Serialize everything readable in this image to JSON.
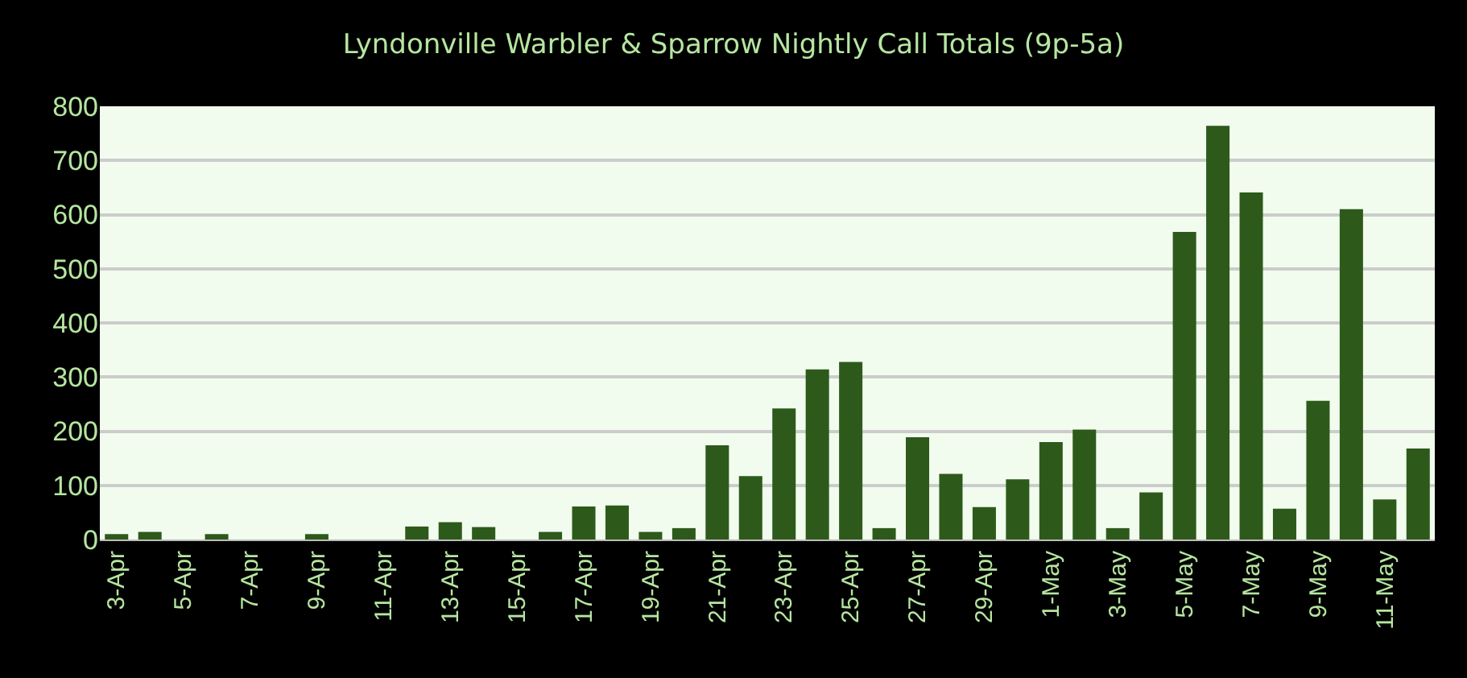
{
  "chart_data": {
    "type": "bar",
    "title": "Lyndonville Warbler & Sparrow Nightly Call Totals (9p-5a)",
    "categories": [
      "3-Apr",
      null,
      "5-Apr",
      null,
      "7-Apr",
      null,
      "9-Apr",
      null,
      "11-Apr",
      null,
      "13-Apr",
      null,
      "15-Apr",
      null,
      "17-Apr",
      null,
      "19-Apr",
      null,
      "21-Apr",
      null,
      "23-Apr",
      null,
      "25-Apr",
      null,
      "27-Apr",
      null,
      "29-Apr",
      null,
      "1-May",
      null,
      "3-May",
      null,
      "5-May",
      null,
      "7-May",
      null,
      "9-May",
      null,
      "11-May",
      null
    ],
    "values": [
      10,
      14,
      0,
      10,
      0,
      0,
      10,
      0,
      0,
      24,
      32,
      23,
      0,
      14,
      61,
      63,
      14,
      21,
      174,
      117,
      242,
      314,
      328,
      21,
      189,
      121,
      60,
      111,
      180,
      203,
      21,
      87,
      568,
      764,
      641,
      57,
      256,
      610,
      74,
      168
    ],
    "color": "#2d5a1b",
    "ylim": [
      0,
      800
    ],
    "yticks": [
      0,
      100,
      200,
      300,
      400,
      500,
      600,
      700,
      800
    ],
    "grid": true
  }
}
